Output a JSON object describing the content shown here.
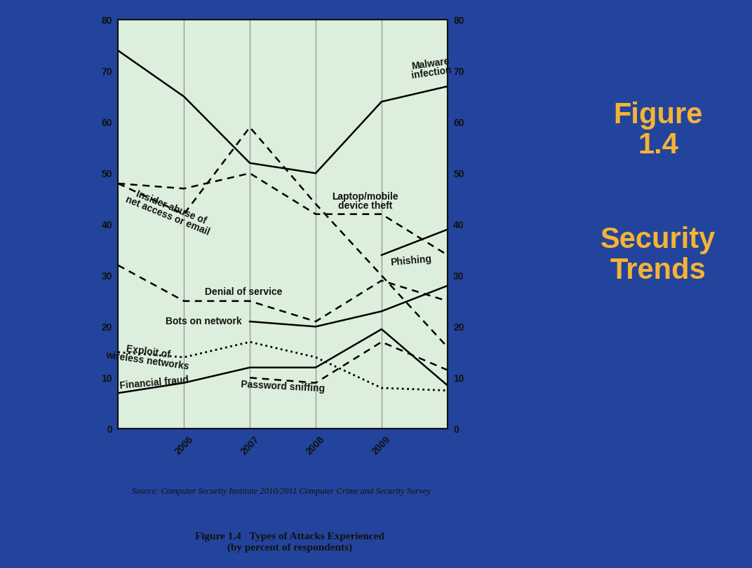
{
  "slide": {
    "heading": "Figure\n1.4",
    "subheading": "Security\nTrends"
  },
  "chart_data": {
    "type": "line",
    "categories": [
      null,
      "2006",
      "2007",
      "2008",
      "2009",
      null
    ],
    "series": [
      {
        "name": "Malware\ninfection",
        "color": "#000000",
        "line_style": "solid",
        "values": [
          74,
          65,
          52,
          50,
          64,
          67
        ]
      },
      {
        "name": "Insider abuse of\nnet access or email",
        "color": "#000000",
        "line_style": "dashed",
        "values": [
          48,
          42,
          59,
          44,
          30,
          16
        ]
      },
      {
        "name": "Laptop/mobile\ndevice theft",
        "color": "#000000",
        "line_style": "dashed",
        "values": [
          48,
          47,
          50,
          42,
          42,
          34
        ]
      },
      {
        "name": "Phishing",
        "color": "#000000",
        "line_style": "solid",
        "values": [
          null,
          null,
          null,
          null,
          34,
          39
        ]
      },
      {
        "name": "Denial of service",
        "color": "#000000",
        "line_style": "dashed",
        "values": [
          32,
          25,
          25,
          21,
          29,
          25
        ]
      },
      {
        "name": "Bots on network",
        "color": "#000000",
        "line_style": "solid",
        "values": [
          null,
          null,
          21,
          20,
          23,
          28
        ]
      },
      {
        "name": "Exploit of\nwireless networks",
        "color": "#000000",
        "line_style": "dotted",
        "values": [
          15,
          14,
          17,
          14,
          8,
          7.5
        ]
      },
      {
        "name": "Financial fraud",
        "color": "#000000",
        "line_style": "solid",
        "values": [
          7,
          9,
          12,
          12,
          19.5,
          8.5
        ]
      },
      {
        "name": "Password sniffing",
        "color": "#000000",
        "line_style": "dashed",
        "values": [
          null,
          null,
          10,
          9,
          17,
          11.5
        ]
      }
    ],
    "ylim": [
      0,
      80
    ],
    "yticks": [
      0,
      10,
      20,
      30,
      40,
      50,
      60,
      70,
      80
    ],
    "y2lim": [
      0,
      80
    ],
    "y2ticks": [
      0,
      10,
      20,
      30,
      40,
      50,
      60,
      70,
      80
    ],
    "grid": true
  },
  "source": "Source: Computer Security Institute 2010/2011 Computer Crime and Security Survey",
  "caption": "Figure 1.4   Types of Attacks Experienced\n(by percent of respondents)"
}
